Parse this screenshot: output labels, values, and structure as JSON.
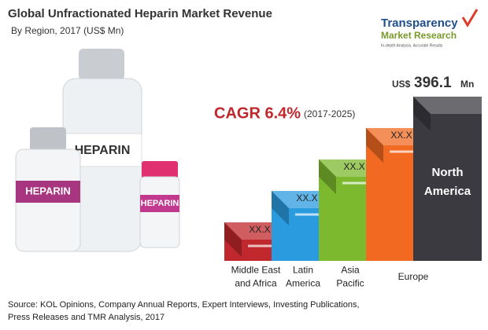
{
  "header": {
    "title": "Global Unfractionated Heparin Market Revenue",
    "subtitle": "By Region, 2017 (US$ Mn)"
  },
  "logo": {
    "line1": "Transparency",
    "line2": "Market Research",
    "tagline": "In-depth Analysis. Accurate Results"
  },
  "bottles": [
    "HEPARIN",
    "HEPARIN",
    "HEPARIN"
  ],
  "cagr": {
    "label": "CAGR 6.4%",
    "period": "(2017-2025)"
  },
  "highlight": {
    "prefix": "US$",
    "value": "396.1",
    "unit": "Mn"
  },
  "bars": [
    {
      "lines": [
        "Middle East",
        "and Africa"
      ],
      "value_label": "XX.X",
      "color": "#c0282d"
    },
    {
      "lines": [
        "Latin",
        "America"
      ],
      "value_label": "XX.X",
      "color": "#2b9be0"
    },
    {
      "lines": [
        "Asia",
        "Pacific"
      ],
      "value_label": "XX.X",
      "color": "#7db92f"
    },
    {
      "lines": [
        "Europe"
      ],
      "value_label": "XX.X",
      "color": "#f26a22"
    },
    {
      "lines": [
        "North",
        "America"
      ],
      "color": "#3a3a40"
    }
  ],
  "source": [
    "Source: KOL Opinions, Company Annual Reports, Expert Interviews, Investing Publications,",
    "Press Releases and TMR Analysis, 2017"
  ]
}
